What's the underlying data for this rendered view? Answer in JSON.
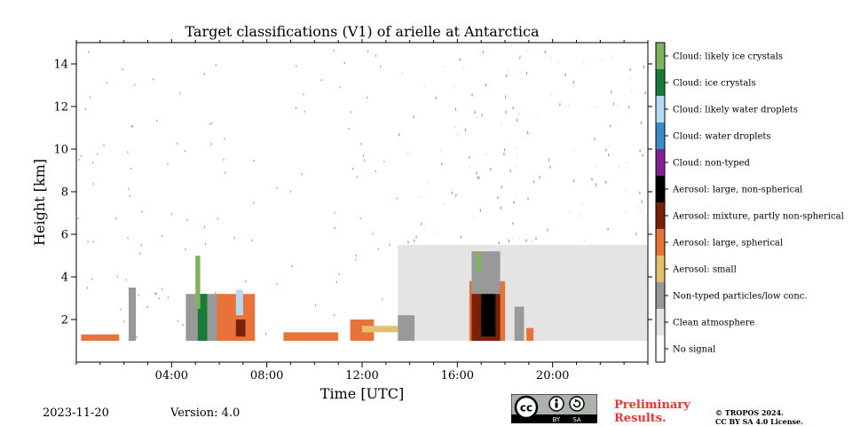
{
  "chart_data": {
    "type": "heatmap",
    "title": "Target classifications (V1) of arielle at Antarctica",
    "xlabel": "Time [UTC]",
    "ylabel": "Height [km]",
    "xlim": [
      0,
      24
    ],
    "ylim": [
      0,
      15
    ],
    "x_ticks": [
      4,
      8,
      12,
      16,
      20
    ],
    "x_tick_labels": [
      "04:00",
      "08:00",
      "12:00",
      "16:00",
      "20:00"
    ],
    "y_ticks": [
      2,
      4,
      6,
      8,
      10,
      12,
      14
    ],
    "y_tick_labels": [
      "2",
      "4",
      "6",
      "8",
      "10",
      "12",
      "14"
    ],
    "min_height_km": 1.0,
    "classes": [
      {
        "label": "Cloud: likely ice crystals",
        "color": "#7fb35e"
      },
      {
        "label": "Cloud: ice crystals",
        "color": "#1a7a3a"
      },
      {
        "label": "Cloud: likely water droplets",
        "color": "#b3dcf2"
      },
      {
        "label": "Cloud: water droplets",
        "color": "#3e8ac8"
      },
      {
        "label": "Cloud: non-typed",
        "color": "#842190"
      },
      {
        "label": "Aerosol: large, non-spherical",
        "color": "#000000"
      },
      {
        "label": "Aerosol: mixture, partly non-spherical",
        "color": "#7a2208"
      },
      {
        "label": "Aerosol: large, spherical",
        "color": "#e8733a"
      },
      {
        "label": "Aerosol: small",
        "color": "#e2c070"
      },
      {
        "label": "Non-typed particles/low conc.",
        "color": "#999999"
      },
      {
        "label": "Clean atmosphere",
        "color": "#e4e4e4"
      },
      {
        "label": "No signal",
        "color": "#ffffff"
      }
    ],
    "regions": [
      {
        "class": "Clean atmosphere",
        "t0": 13.5,
        "t1": 24.0,
        "h0": 1.0,
        "h1": 5.5
      },
      {
        "class": "Non-typed particles/low conc.",
        "t0": 2.2,
        "t1": 2.5,
        "h0": 1.0,
        "h1": 3.5
      },
      {
        "class": "Aerosol: large, spherical",
        "t0": 0.2,
        "t1": 1.8,
        "h0": 1.0,
        "h1": 1.3
      },
      {
        "class": "Non-typed particles/low conc.",
        "t0": 4.6,
        "t1": 6.2,
        "h0": 1.0,
        "h1": 3.2
      },
      {
        "class": "Cloud: ice crystals",
        "t0": 5.1,
        "t1": 5.5,
        "h0": 1.0,
        "h1": 3.2
      },
      {
        "class": "Cloud: likely ice crystals",
        "t0": 5.0,
        "t1": 5.2,
        "h0": 2.5,
        "h1": 5.0
      },
      {
        "class": "Aerosol: large, spherical",
        "t0": 5.9,
        "t1": 7.5,
        "h0": 1.0,
        "h1": 3.2
      },
      {
        "class": "Aerosol: mixture, partly non-spherical",
        "t0": 6.7,
        "t1": 7.1,
        "h0": 1.2,
        "h1": 2.0
      },
      {
        "class": "Cloud: likely water droplets",
        "t0": 6.7,
        "t1": 7.0,
        "h0": 2.2,
        "h1": 3.4
      },
      {
        "class": "Aerosol: large, spherical",
        "t0": 8.7,
        "t1": 11.0,
        "h0": 1.0,
        "h1": 1.4
      },
      {
        "class": "Aerosol: large, spherical",
        "t0": 11.5,
        "t1": 12.5,
        "h0": 1.0,
        "h1": 2.0
      },
      {
        "class": "Aerosol: small",
        "t0": 12.0,
        "t1": 13.5,
        "h0": 1.4,
        "h1": 1.7
      },
      {
        "class": "Non-typed particles/low conc.",
        "t0": 13.5,
        "t1": 14.2,
        "h0": 1.0,
        "h1": 2.2
      },
      {
        "class": "Aerosol: large, spherical",
        "t0": 16.5,
        "t1": 18.0,
        "h0": 1.0,
        "h1": 3.8
      },
      {
        "class": "Aerosol: mixture, partly non-spherical",
        "t0": 16.6,
        "t1": 17.8,
        "h0": 1.0,
        "h1": 3.5
      },
      {
        "class": "Aerosol: large, non-spherical",
        "t0": 17.0,
        "t1": 17.6,
        "h0": 1.2,
        "h1": 3.2
      },
      {
        "class": "Non-typed particles/low conc.",
        "t0": 16.6,
        "t1": 17.8,
        "h0": 3.2,
        "h1": 5.2
      },
      {
        "class": "Cloud: likely ice crystals",
        "t0": 16.8,
        "t1": 17.0,
        "h0": 4.2,
        "h1": 5.2
      },
      {
        "class": "Non-typed particles/low conc.",
        "t0": 18.4,
        "t1": 18.8,
        "h0": 1.0,
        "h1": 2.6
      },
      {
        "class": "Aerosol: large, spherical",
        "t0": 18.9,
        "t1": 19.2,
        "h0": 1.0,
        "h1": 1.6
      }
    ]
  },
  "footer": {
    "date": "2023-11-20",
    "version": "Version: 4.0",
    "preliminary_line1": "Preliminary",
    "preliminary_line2": "Results.",
    "copyright_line1": "© TROPOS 2024.",
    "copyright_line2": "CC BY SA 4.0 License.",
    "cc_badge_text": "cc",
    "cc_by": "BY",
    "cc_sa": "SA"
  }
}
